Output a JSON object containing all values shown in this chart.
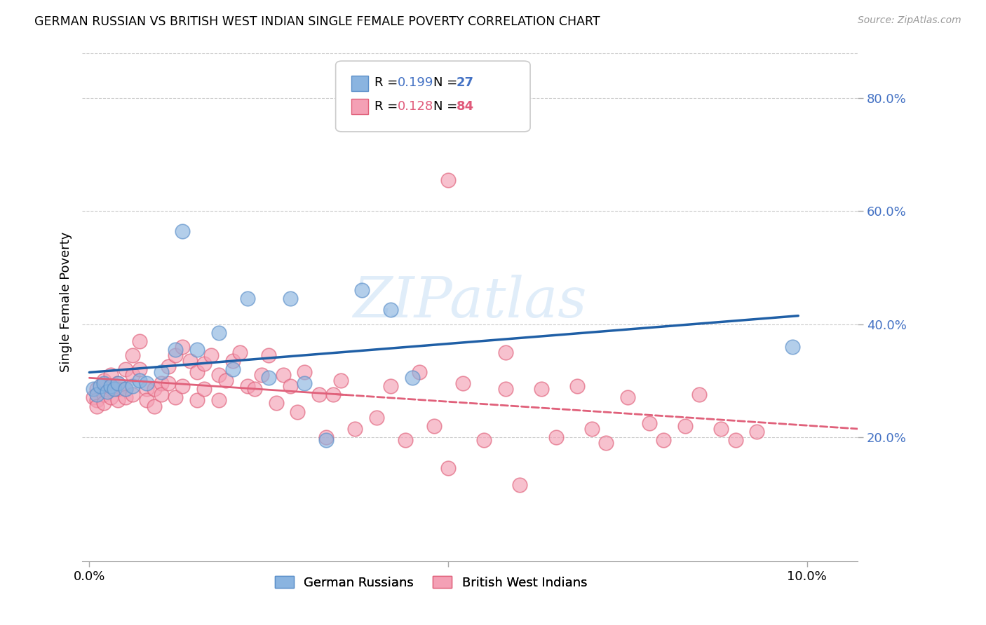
{
  "title": "GERMAN RUSSIAN VS BRITISH WEST INDIAN SINGLE FEMALE POVERTY CORRELATION CHART",
  "source": "Source: ZipAtlas.com",
  "ylabel": "Single Female Poverty",
  "color_blue": "#8ab4e0",
  "color_blue_edge": "#5b8fc9",
  "color_pink": "#f4a0b5",
  "color_pink_edge": "#e0607a",
  "color_blue_line": "#1f5fa6",
  "color_pink_line": "#e0607a",
  "color_axis_label": "#4472c4",
  "color_grid": "#cccccc",
  "color_watermark": "#c8dff5",
  "background_color": "#ffffff",
  "legend_r1_val": "0.199",
  "legend_n1_val": "27",
  "legend_r2_val": "0.128",
  "legend_n2_val": "84",
  "ytick_vals": [
    0.2,
    0.4,
    0.6,
    0.8
  ],
  "ytick_labels": [
    "20.0%",
    "40.0%",
    "60.0%",
    "80.0%"
  ],
  "xlim": [
    -0.001,
    0.107
  ],
  "ylim": [
    -0.02,
    0.9
  ],
  "gr_x": [
    0.0005,
    0.001,
    0.0015,
    0.002,
    0.0025,
    0.003,
    0.0035,
    0.004,
    0.005,
    0.006,
    0.007,
    0.008,
    0.01,
    0.012,
    0.013,
    0.015,
    0.018,
    0.02,
    0.022,
    0.025,
    0.028,
    0.03,
    0.033,
    0.038,
    0.042,
    0.045,
    0.098
  ],
  "gr_y": [
    0.285,
    0.275,
    0.29,
    0.295,
    0.28,
    0.29,
    0.285,
    0.295,
    0.285,
    0.29,
    0.3,
    0.295,
    0.315,
    0.355,
    0.565,
    0.355,
    0.385,
    0.32,
    0.445,
    0.305,
    0.445,
    0.295,
    0.195,
    0.46,
    0.425,
    0.305,
    0.36
  ],
  "bwi_x": [
    0.0005,
    0.001,
    0.001,
    0.001,
    0.002,
    0.002,
    0.002,
    0.002,
    0.003,
    0.003,
    0.003,
    0.004,
    0.004,
    0.004,
    0.005,
    0.005,
    0.005,
    0.006,
    0.006,
    0.006,
    0.007,
    0.007,
    0.008,
    0.008,
    0.009,
    0.009,
    0.01,
    0.01,
    0.011,
    0.011,
    0.012,
    0.012,
    0.013,
    0.013,
    0.014,
    0.015,
    0.015,
    0.016,
    0.016,
    0.017,
    0.018,
    0.018,
    0.019,
    0.02,
    0.021,
    0.022,
    0.023,
    0.024,
    0.025,
    0.026,
    0.027,
    0.028,
    0.029,
    0.03,
    0.032,
    0.033,
    0.034,
    0.035,
    0.037,
    0.04,
    0.042,
    0.044,
    0.046,
    0.048,
    0.05,
    0.052,
    0.055,
    0.058,
    0.06,
    0.063,
    0.065,
    0.068,
    0.07,
    0.072,
    0.075,
    0.078,
    0.08,
    0.083,
    0.085,
    0.088,
    0.09,
    0.093,
    0.05,
    0.058
  ],
  "bwi_y": [
    0.27,
    0.285,
    0.265,
    0.255,
    0.29,
    0.275,
    0.3,
    0.26,
    0.285,
    0.27,
    0.31,
    0.295,
    0.265,
    0.285,
    0.32,
    0.285,
    0.27,
    0.345,
    0.31,
    0.275,
    0.37,
    0.32,
    0.285,
    0.265,
    0.285,
    0.255,
    0.295,
    0.275,
    0.325,
    0.295,
    0.345,
    0.27,
    0.36,
    0.29,
    0.335,
    0.315,
    0.265,
    0.33,
    0.285,
    0.345,
    0.31,
    0.265,
    0.3,
    0.335,
    0.35,
    0.29,
    0.285,
    0.31,
    0.345,
    0.26,
    0.31,
    0.29,
    0.245,
    0.315,
    0.275,
    0.2,
    0.275,
    0.3,
    0.215,
    0.235,
    0.29,
    0.195,
    0.315,
    0.22,
    0.145,
    0.295,
    0.195,
    0.285,
    0.115,
    0.285,
    0.2,
    0.29,
    0.215,
    0.19,
    0.27,
    0.225,
    0.195,
    0.22,
    0.275,
    0.215,
    0.195,
    0.21,
    0.655,
    0.35
  ]
}
